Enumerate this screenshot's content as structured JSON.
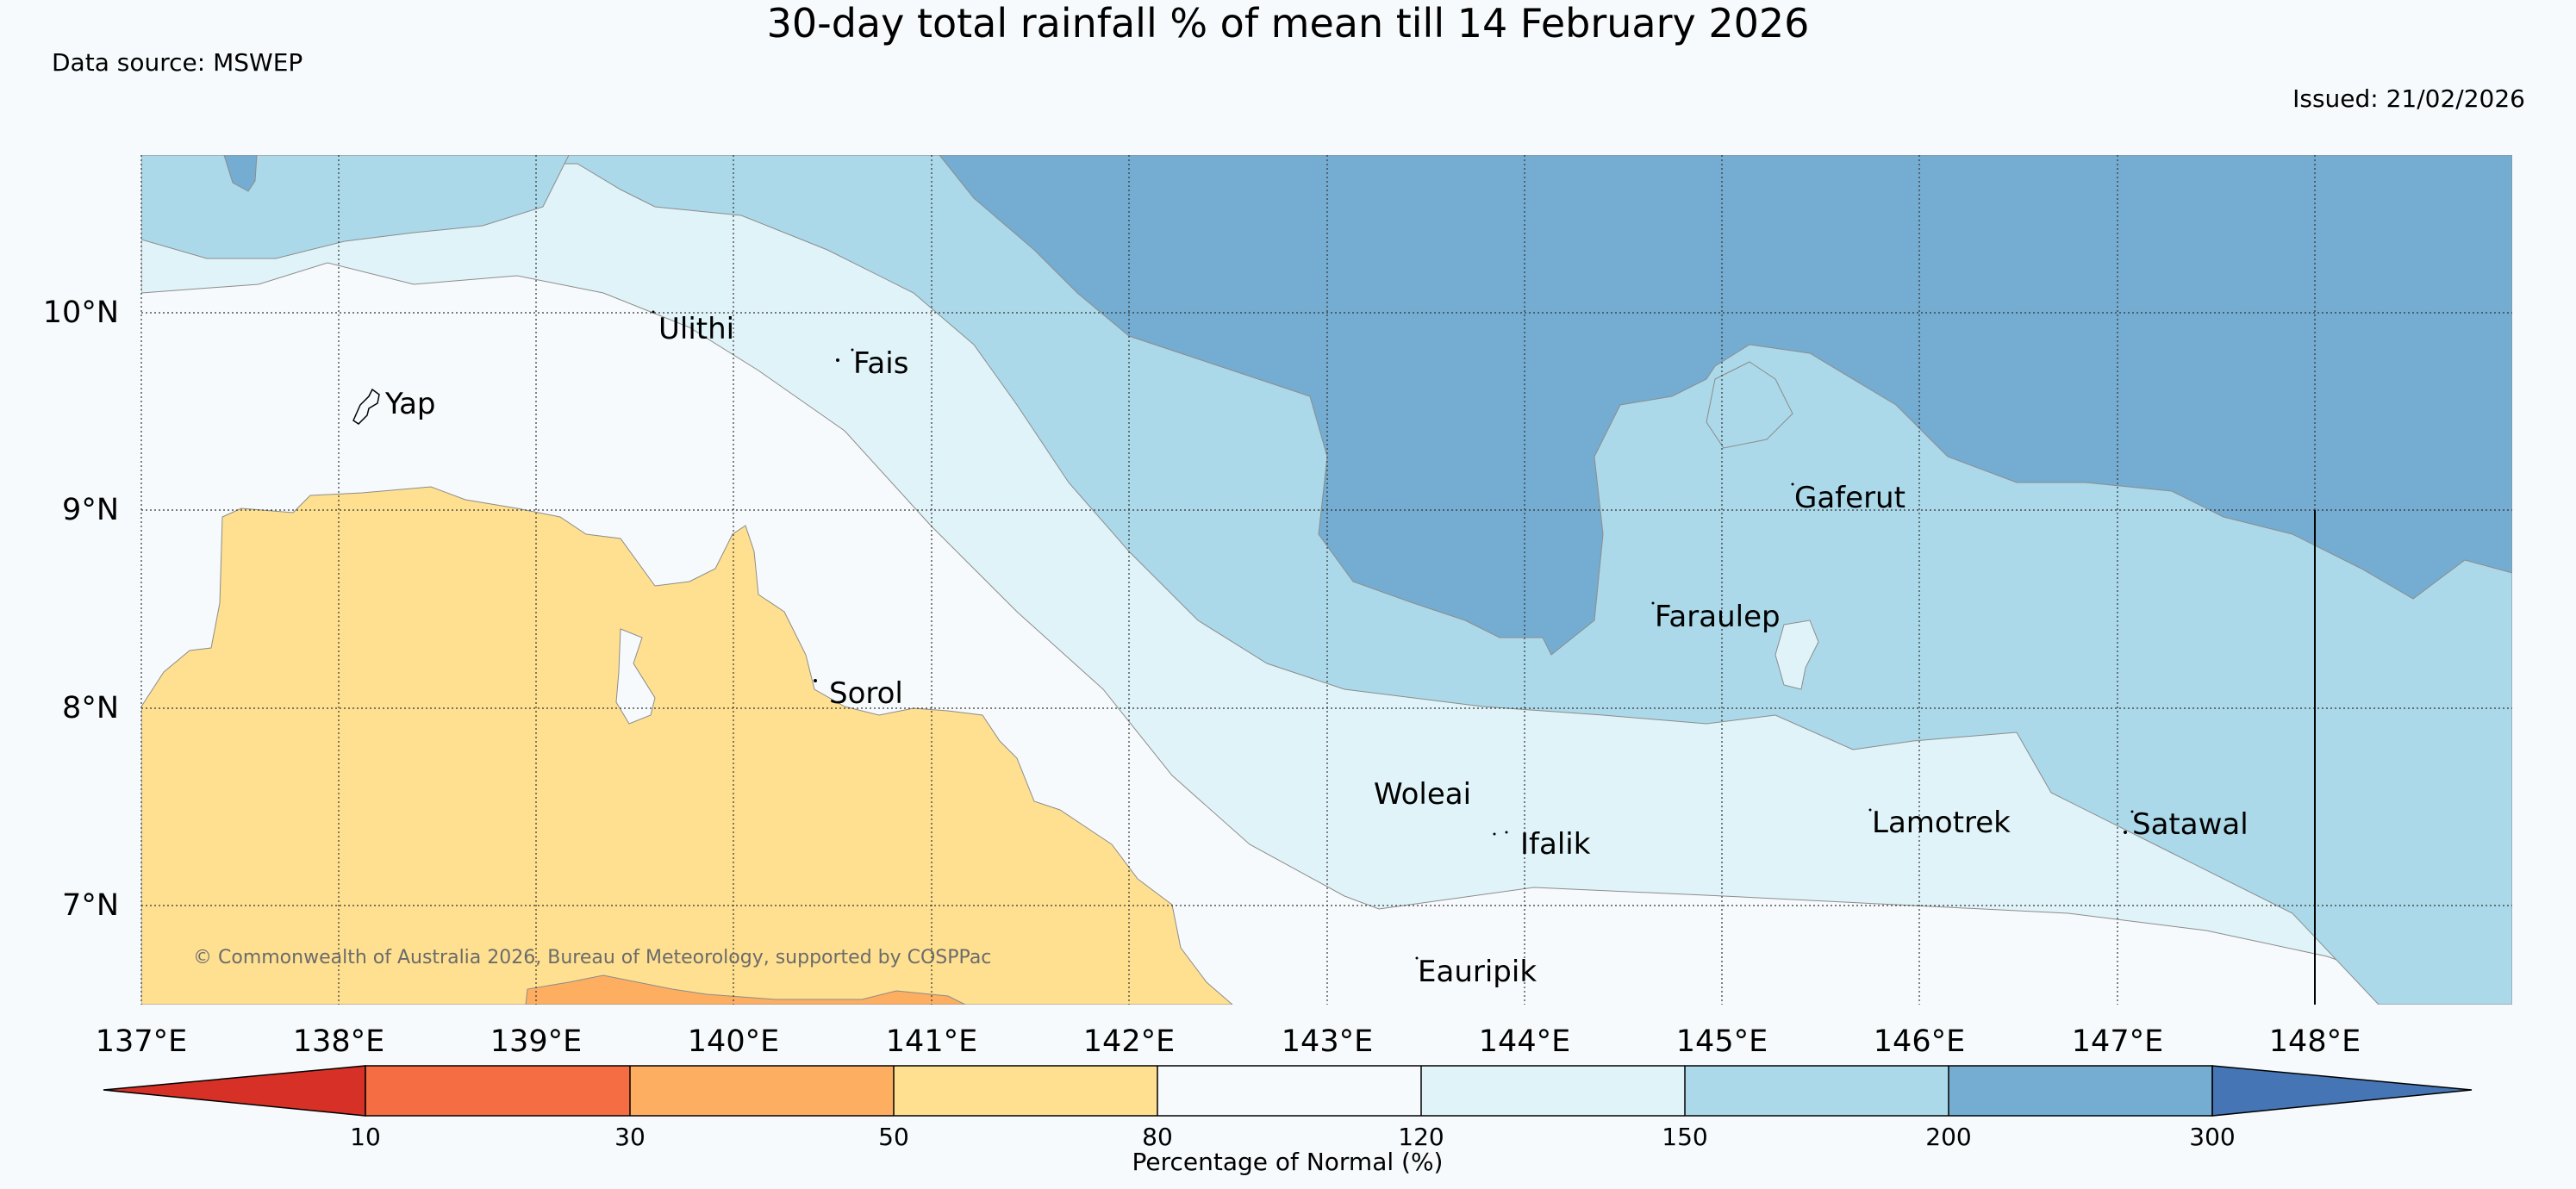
{
  "title": "30-day total rainfall % of mean till 14 February 2026",
  "data_source": "Data source: MSWEP",
  "issued": "Issued: 21/02/2026",
  "copyright": "© Commonwealth of Australia 2026, Bureau of Meteorology, supported by COSPPac",
  "map": {
    "lon_labels": [
      "137°E",
      "138°E",
      "139°E",
      "140°E",
      "141°E",
      "142°E",
      "143°E",
      "144°E",
      "145°E",
      "146°E",
      "147°E",
      "148°E"
    ],
    "lat_labels": [
      "10°N",
      "9°N",
      "8°N",
      "7°N"
    ],
    "places": [
      {
        "name": "Ulithi"
      },
      {
        "name": "Fais"
      },
      {
        "name": "Yap"
      },
      {
        "name": "Gaferut"
      },
      {
        "name": "Faraulep"
      },
      {
        "name": "Sorol"
      },
      {
        "name": "Woleai"
      },
      {
        "name": "Ifalik"
      },
      {
        "name": "Lamotrek"
      },
      {
        "name": "Satawal"
      },
      {
        "name": "Eauripik"
      }
    ]
  },
  "legend": {
    "title": "Percentage of Normal (%)",
    "ticks": [
      "10",
      "30",
      "50",
      "80",
      "120",
      "150",
      "200",
      "300"
    ],
    "colors": {
      "below_10": "#d73027",
      "10_30": "#f46d43",
      "30_50": "#fdae61",
      "50_80": "#fee090",
      "80_120": "#f7fafc",
      "120_150": "#e0f3f8",
      "150_200": "#abd9e9",
      "200_300": "#74add1",
      "above_300": "#4575b4"
    }
  }
}
